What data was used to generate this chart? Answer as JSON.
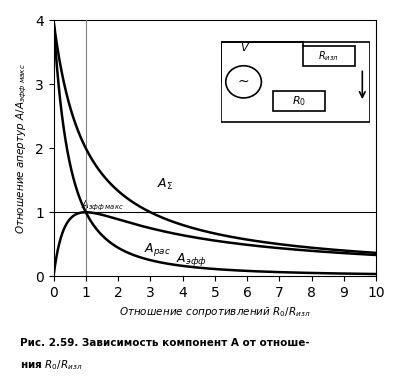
{
  "title": "",
  "xlabel": "Отношение сопротивлений $R_0/R_{изл}$",
  "ylabel": "Отношение апертур $A/A_{эфф\\ макс}$",
  "xlim": [
    0,
    10
  ],
  "ylim": [
    0,
    4
  ],
  "xticks": [
    0,
    1,
    2,
    3,
    4,
    5,
    6,
    7,
    8,
    9,
    10
  ],
  "yticks": [
    0,
    1,
    2,
    3,
    4
  ],
  "vline_x": 1.0,
  "hline_y": 1.0,
  "caption_line1": "Рис. 2.59. Зависимость компонент A от отноше-",
  "caption_line2": "ния $R_0/R_{изл}$",
  "background_color": "#ffffff",
  "curve_color": "#000000",
  "label_A_sigma": "$A_\\Sigma$",
  "label_A_eff_max": "$A_{\\mathit{\\text{эфф}\\ \\text{макс}}}$",
  "label_A_ras": "$A_{\\mathit{\\text{рас}}}$",
  "label_A_eff": "$A_{\\mathit{\\text{эфф}}}$"
}
